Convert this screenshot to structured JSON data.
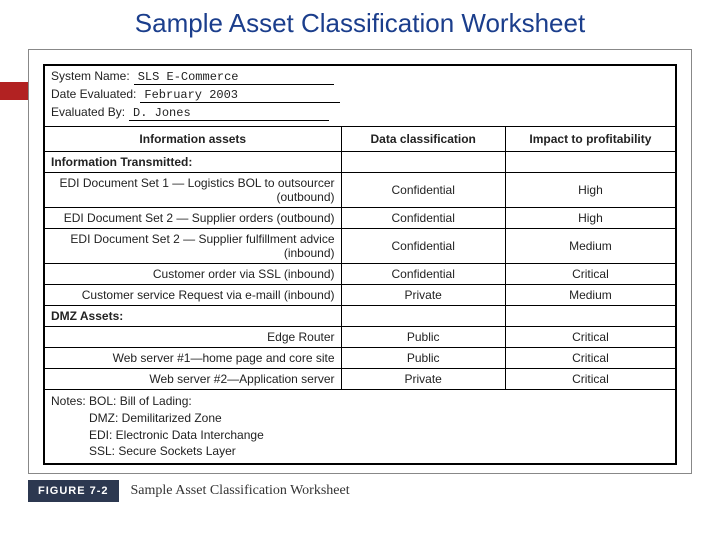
{
  "title": "Sample Asset Classification Worksheet",
  "title_color": "#1b3e8c",
  "accent_color": "#b22222",
  "meta": {
    "system_name_label": "System Name:",
    "system_name_value": "SLS E-Commerce",
    "date_label": "Date Evaluated:",
    "date_value": "February 2003",
    "evaluator_label": "Evaluated By:",
    "evaluator_value": "D. Jones"
  },
  "headers": {
    "assets": "Information assets",
    "classification": "Data classification",
    "impact": "Impact to profitability"
  },
  "section1_label": "Information Transmitted:",
  "rows1": [
    {
      "asset": "EDI Document Set 1 — Logistics BOL to outsourcer (outbound)",
      "cls": "Confidential",
      "imp": "High"
    },
    {
      "asset": "EDI Document Set 2 — Supplier orders (outbound)",
      "cls": "Confidential",
      "imp": "High"
    },
    {
      "asset": "EDI Document Set 2 — Supplier fulfillment advice (inbound)",
      "cls": "Confidential",
      "imp": "Medium"
    },
    {
      "asset": "Customer order via SSL (inbound)",
      "cls": "Confidential",
      "imp": "Critical"
    },
    {
      "asset": "Customer service Request via e-maill (inbound)",
      "cls": "Private",
      "imp": "Medium"
    }
  ],
  "section2_label": "DMZ Assets:",
  "rows2": [
    {
      "asset": "Edge Router",
      "cls": "Public",
      "imp": "Critical"
    },
    {
      "asset": "Web server #1—home page and core site",
      "cls": "Public",
      "imp": "Critical"
    },
    {
      "asset": "Web server #2—Application server",
      "cls": "Private",
      "imp": "Critical"
    }
  ],
  "notes": {
    "lead": "Notes: BOL: Bill of Lading:",
    "l2": "DMZ: Demilitarized Zone",
    "l3": "EDI: Electronic Data Interchange",
    "l4": "SSL: Secure Sockets Layer"
  },
  "figure": {
    "badge": "FIGURE 7-2",
    "caption": "Sample Asset Classification Worksheet",
    "badge_bg": "#2c3850"
  }
}
